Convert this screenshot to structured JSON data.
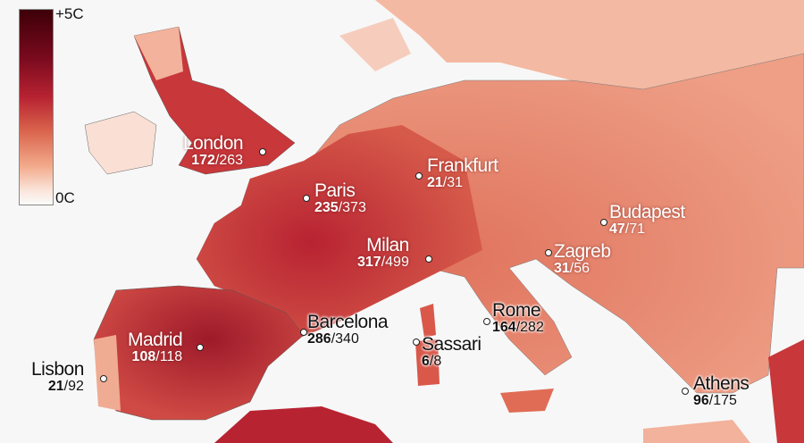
{
  "legend": {
    "max_label": "+5C",
    "min_label": "0C",
    "colors": [
      "#fafafa",
      "#f2a98a",
      "#d9634c",
      "#b82332",
      "#3d0008"
    ]
  },
  "colors": {
    "sea": "#f7f7f7",
    "land_warm": "#c8373a",
    "land_mild": "#e8826a",
    "land_cool": "#f6cdbd"
  },
  "cities": [
    {
      "name": "London",
      "bold": "172",
      "rest": "/263"
    },
    {
      "name": "Paris",
      "bold": "235",
      "rest": "/373"
    },
    {
      "name": "Frankfurt",
      "bold": "21",
      "rest": "/31"
    },
    {
      "name": "Budapest",
      "bold": "47",
      "rest": "/71"
    },
    {
      "name": "Milan",
      "bold": "317",
      "rest": "/499"
    },
    {
      "name": "Zagreb",
      "bold": "31",
      "rest": "/56"
    },
    {
      "name": "Barcelona",
      "bold": "286",
      "rest": "/340"
    },
    {
      "name": "Rome",
      "bold": "164",
      "rest": "/282"
    },
    {
      "name": "Madrid",
      "bold": "108",
      "rest": "/118"
    },
    {
      "name": "Sassari",
      "bold": "6",
      "rest": "/8"
    },
    {
      "name": "Lisbon",
      "bold": "21",
      "rest": "/92"
    },
    {
      "name": "Athens",
      "bold": "96",
      "rest": "/175"
    }
  ]
}
